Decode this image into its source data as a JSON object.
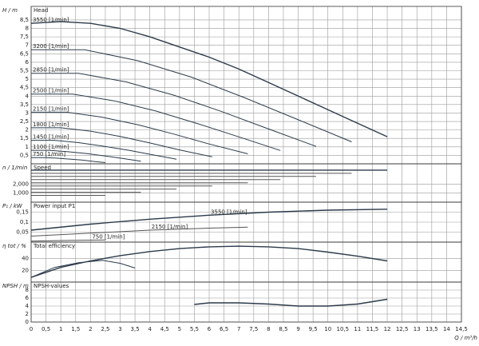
{
  "chart_data": [
    {
      "type": "line",
      "ylabel": "H / m",
      "title": "Head",
      "ylim": [
        0,
        9.3
      ],
      "yticks": [
        {
          "value": 0.5,
          "label": "0,5"
        },
        1,
        {
          "value": 1.5,
          "label": "1,5"
        },
        2,
        {
          "value": 2.5,
          "label": "2,5"
        },
        3,
        {
          "value": 3.5,
          "label": "3,5"
        },
        4,
        {
          "value": 4.5,
          "label": "4,5"
        },
        5,
        {
          "value": 5.5,
          "label": "5,5"
        },
        6,
        {
          "value": 6.5,
          "label": "6,5"
        },
        7,
        {
          "value": 7.5,
          "label": "7,5"
        },
        8,
        {
          "value": 8.5,
          "label": "8,5"
        }
      ],
      "series": [
        {
          "name": "3550 [1/min]",
          "color": "#2b3a4a",
          "x": [
            0,
            1,
            2,
            3,
            4,
            5,
            6,
            7,
            8,
            9,
            10,
            11,
            12
          ],
          "values": [
            8.3,
            8.4,
            8.3,
            8.0,
            7.5,
            6.9,
            6.3,
            5.6,
            4.8,
            4.0,
            3.2,
            2.4,
            1.6
          ]
        },
        {
          "name": "3200 [1/min]",
          "color": "#2b3a4a",
          "x": [
            0,
            1.8,
            3.6,
            5.4,
            7.2,
            9.0,
            10.8
          ],
          "values": [
            6.74,
            6.74,
            6.09,
            5.12,
            3.9,
            2.6,
            1.3
          ]
        },
        {
          "name": "2850 [1/min]",
          "color": "#2b3a4a",
          "x": [
            0,
            1.6,
            3.2,
            4.8,
            6.4,
            8.0,
            9.6
          ],
          "values": [
            5.35,
            5.35,
            4.84,
            4.06,
            3.1,
            2.06,
            1.03
          ]
        },
        {
          "name": "2500 [1/min]",
          "color": "#2b3a4a",
          "x": [
            0,
            1.4,
            2.8,
            4.2,
            5.6,
            7.0,
            8.4
          ],
          "values": [
            4.12,
            4.12,
            3.72,
            3.12,
            2.38,
            1.59,
            0.79
          ]
        },
        {
          "name": "2150 [1/min]",
          "color": "#2b3a4a",
          "x": [
            0,
            1.2,
            2.4,
            3.6,
            4.8,
            6.0,
            7.3
          ],
          "values": [
            3.05,
            3.05,
            2.75,
            2.31,
            1.76,
            1.17,
            0.59
          ]
        },
        {
          "name": "1800 [1/min]",
          "color": "#2b3a4a",
          "x": [
            0,
            1,
            2,
            3,
            4,
            5,
            6.1
          ],
          "values": [
            2.13,
            2.13,
            1.93,
            1.62,
            1.23,
            0.82,
            0.41
          ]
        },
        {
          "name": "1450 [1/min]",
          "color": "#2b3a4a",
          "x": [
            0,
            0.8,
            1.6,
            2.4,
            3.3,
            4.1,
            4.9
          ],
          "values": [
            1.39,
            1.39,
            1.25,
            1.05,
            0.8,
            0.53,
            0.27
          ]
        },
        {
          "name": "1100 [1/min]",
          "color": "#2b3a4a",
          "x": [
            0,
            0.6,
            1.2,
            1.9,
            2.5,
            3.1,
            3.7
          ],
          "values": [
            0.8,
            0.8,
            0.72,
            0.6,
            0.46,
            0.31,
            0.15
          ]
        },
        {
          "name": "750 [1/min]",
          "color": "#2b3a4a",
          "x": [
            0,
            0.4,
            0.8,
            1.3,
            1.7,
            2.1,
            2.5
          ],
          "values": [
            0.37,
            0.37,
            0.34,
            0.28,
            0.22,
            0.14,
            0.07
          ]
        }
      ]
    },
    {
      "type": "line",
      "ylabel": "n / 1/min",
      "title": "Speed",
      "ylim": [
        0,
        4250
      ],
      "yticks": [
        {
          "value": 1000,
          "label": "1,000"
        },
        {
          "value": 2000,
          "label": "2,000"
        }
      ],
      "series": [
        {
          "color": "#2b3a4a",
          "x": [
            0,
            12
          ],
          "values": [
            3550,
            3550
          ]
        },
        {
          "color": "#555555",
          "x": [
            0,
            10.8
          ],
          "values": [
            3200,
            3200
          ]
        },
        {
          "color": "#555555",
          "x": [
            0,
            9.6
          ],
          "values": [
            2850,
            2850
          ]
        },
        {
          "color": "#555555",
          "x": [
            0,
            8.4
          ],
          "values": [
            2500,
            2500
          ]
        },
        {
          "color": "#555555",
          "x": [
            0,
            7.3
          ],
          "values": [
            2150,
            2150
          ]
        },
        {
          "color": "#555555",
          "x": [
            0,
            6.1
          ],
          "values": [
            1800,
            1800
          ]
        },
        {
          "color": "#555555",
          "x": [
            0,
            4.9
          ],
          "values": [
            1450,
            1450
          ]
        },
        {
          "color": "#555555",
          "x": [
            0,
            3.7
          ],
          "values": [
            1100,
            1100
          ]
        },
        {
          "color": "#555555",
          "x": [
            0,
            2.5
          ],
          "values": [
            750,
            750
          ]
        }
      ]
    },
    {
      "type": "line",
      "ylabel": "P₁ / kW",
      "title": "Power input P1",
      "ylim": [
        0,
        0.2
      ],
      "yticks": [
        {
          "value": 0.05,
          "label": "0,05"
        },
        {
          "value": 0.1,
          "label": "0,1"
        },
        {
          "value": 0.15,
          "label": "0,15"
        }
      ],
      "series": [
        {
          "name": "3550 [1/min]",
          "color": "#2b3a4a",
          "x": [
            0,
            2,
            4,
            6,
            8,
            10,
            12
          ],
          "values": [
            0.06,
            0.09,
            0.115,
            0.135,
            0.15,
            0.16,
            0.165
          ]
        },
        {
          "name": "2150 [1/min]",
          "color": "#555555",
          "x": [
            0,
            2,
            4,
            6,
            7.3
          ],
          "values": [
            0.03,
            0.045,
            0.06,
            0.07,
            0.075
          ]
        },
        {
          "name": "750 [1/min]",
          "color": "#555555",
          "x": [
            0,
            1,
            2,
            2.5
          ],
          "values": [
            0.005,
            0.008,
            0.01,
            0.011
          ]
        }
      ]
    },
    {
      "type": "line",
      "ylabel": "η tot / %",
      "title": "Total efficiency",
      "ylim": [
        0,
        68
      ],
      "yticks": [
        20,
        40
      ],
      "series": [
        {
          "color": "#2b3a4a",
          "x": [
            0,
            1,
            2,
            3,
            4,
            5,
            6,
            7,
            8,
            9,
            10,
            11,
            12
          ],
          "values": [
            8,
            25,
            36,
            45,
            52,
            57,
            60,
            61,
            60,
            57,
            51,
            44,
            36
          ]
        },
        {
          "color": "#2b3a4a",
          "x": [
            0,
            0.8,
            1.6,
            2.4,
            3,
            3.5
          ],
          "values": [
            8,
            25,
            33,
            37,
            32,
            24
          ]
        }
      ]
    },
    {
      "type": "line",
      "ylabel": "NPSH / m",
      "title": "NPSH-values",
      "xlabel": "Q / m³/h",
      "ylim": [
        0,
        10
      ],
      "yticks": [
        0,
        2,
        4,
        6,
        8
      ],
      "xlim": [
        0,
        14.5
      ],
      "xticks": [
        0,
        {
          "value": 0.5,
          "label": "0,5"
        },
        1,
        {
          "value": 1.5,
          "label": "1,5"
        },
        2,
        {
          "value": 2.5,
          "label": "2,5"
        },
        3,
        {
          "value": 3.5,
          "label": "3,5"
        },
        4,
        {
          "value": 4.5,
          "label": "4,5"
        },
        5,
        {
          "value": 5.5,
          "label": "5,5"
        },
        6,
        {
          "value": 6.5,
          "label": "6,5"
        },
        7,
        {
          "value": 7.5,
          "label": "7,5"
        },
        8,
        {
          "value": 8.5,
          "label": "8,5"
        },
        9,
        {
          "value": 9.5,
          "label": "9,5"
        },
        10,
        {
          "value": 10.5,
          "label": "10,5"
        },
        11,
        {
          "value": 11.5,
          "label": "11,5"
        },
        12,
        {
          "value": 12.5,
          "label": "12,5"
        },
        13,
        {
          "value": 13.5,
          "label": "13,5"
        },
        14,
        {
          "value": 14.5,
          "label": "14,5"
        }
      ],
      "series": [
        {
          "color": "#2b3a4a",
          "x": [
            5.5,
            6,
            7,
            8,
            9,
            10,
            11,
            12
          ],
          "values": [
            4.4,
            4.8,
            4.8,
            4.5,
            4.0,
            4.0,
            4.5,
            5.7
          ]
        }
      ]
    }
  ]
}
